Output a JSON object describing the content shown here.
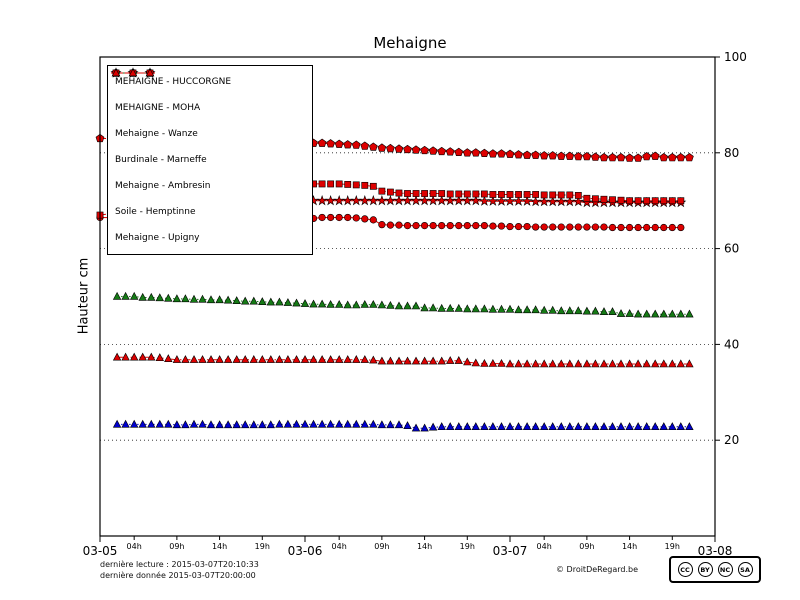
{
  "chart": {
    "title": "Mehaigne",
    "ylabel": "Hauteur cm"
  },
  "footer": {
    "last_reading": "dernière lecture : 2015-03-07T20:10:33",
    "last_data": "dernière donnée  2015-03-07T20:00:00",
    "copyright": "© DroitDeRegard.be",
    "license": {
      "label": "CC BY-NC-SA",
      "parts": [
        "cc",
        "by",
        "nc",
        "sa"
      ]
    }
  },
  "chart_data": {
    "type": "line",
    "title": "Mehaigne",
    "ylabel": "Hauteur cm",
    "ylim": [
      0,
      100
    ],
    "yticks": [
      20,
      40,
      60,
      80,
      100
    ],
    "grid": "dotted horizontal at yticks",
    "legend_position": "upper left",
    "x_unit": "hours since 2015-03-05 00:00",
    "xlim_hours": [
      0,
      72
    ],
    "x_major_ticks": [
      {
        "t": 0,
        "label": "03-05"
      },
      {
        "t": 24,
        "label": "03-06"
      },
      {
        "t": 48,
        "label": "03-07"
      },
      {
        "t": 72,
        "label": "03-08"
      }
    ],
    "x_minor_ticks": [
      {
        "t": 4,
        "label": "04h"
      },
      {
        "t": 9,
        "label": "09h"
      },
      {
        "t": 14,
        "label": "14h"
      },
      {
        "t": 19,
        "label": "19h"
      },
      {
        "t": 28,
        "label": "04h"
      },
      {
        "t": 33,
        "label": "09h"
      },
      {
        "t": 38,
        "label": "14h"
      },
      {
        "t": 43,
        "label": "19h"
      },
      {
        "t": 52,
        "label": "04h"
      },
      {
        "t": 57,
        "label": "09h"
      },
      {
        "t": 62,
        "label": "14h"
      },
      {
        "t": 67,
        "label": "19h"
      }
    ],
    "series": [
      {
        "name": "MEHAIGNE - HUCCORGNE",
        "color": "#dd0000",
        "marker": "circle",
        "linestyle": "solid",
        "pre_points": [
          [
            0,
            66.5
          ]
        ],
        "t0": 24,
        "values": [
          66,
          66.3,
          66.5,
          66.5,
          66.5,
          66.5,
          66.4,
          66.2,
          66,
          65,
          64.9,
          64.9,
          64.8,
          64.8,
          64.8,
          64.8,
          64.8,
          64.8,
          64.8,
          64.8,
          64.8,
          64.8,
          64.7,
          64.7,
          64.6,
          64.6,
          64.6,
          64.5,
          64.5,
          64.5,
          64.5,
          64.5,
          64.5,
          64.5,
          64.5,
          64.5,
          64.4,
          64.4,
          64.4,
          64.4,
          64.4,
          64.4,
          64.4,
          64.4,
          64.4
        ]
      },
      {
        "name": "MEHAIGNE - MOHA",
        "color": "#dd0000",
        "marker": "star",
        "linestyle": "solid",
        "pre_points": [],
        "t0": 24,
        "values": [
          70,
          70,
          70,
          70,
          70,
          70,
          70,
          70,
          70,
          70,
          70,
          70,
          70,
          70,
          70,
          70,
          70,
          70,
          70,
          70,
          70,
          69.9,
          69.9,
          69.9,
          69.9,
          69.9,
          69.9,
          69.8,
          69.8,
          69.8,
          69.8,
          69.8,
          69.8,
          69.6,
          69.6,
          69.6,
          69.6,
          69.6,
          69.6,
          69.6,
          69.6,
          69.6,
          69.6,
          69.6,
          69.6
        ]
      },
      {
        "name": "Mehaigne - Wanze",
        "color": "#dd0000",
        "marker": "pentagon",
        "linestyle": "dashed",
        "pre_points": [
          [
            0,
            83
          ]
        ],
        "t0": 24,
        "values": [
          82,
          82,
          82,
          81.9,
          81.8,
          81.7,
          81.6,
          81.4,
          81.2,
          81,
          80.9,
          80.8,
          80.7,
          80.6,
          80.5,
          80.4,
          80.3,
          80.2,
          80.1,
          80,
          80,
          79.9,
          79.8,
          79.8,
          79.7,
          79.6,
          79.5,
          79.5,
          79.4,
          79.4,
          79.3,
          79.3,
          79.2,
          79.2,
          79.1,
          79,
          79,
          79,
          78.9,
          78.9,
          79.2,
          79.3,
          79,
          79,
          79,
          79
        ]
      },
      {
        "name": "Burdinale - Marneffe",
        "color": "#0000cc",
        "marker": "triangle",
        "linestyle": "dotted",
        "pre_points": [],
        "t0": 2,
        "values": [
          23.3,
          23.3,
          23.3,
          23.3,
          23.3,
          23.3,
          23.3,
          23.2,
          23.2,
          23.3,
          23.3,
          23.2,
          23.2,
          23.2,
          23.2,
          23.2,
          23.2,
          23.2,
          23.2,
          23.3,
          23.3,
          23.3,
          23.3,
          23.3,
          23.3,
          23.3,
          23.3,
          23.3,
          23.3,
          23.3,
          23.3,
          23.2,
          23.2,
          23.2,
          23,
          22.5,
          22.5,
          22.7,
          22.8,
          22.8,
          22.8,
          22.8,
          22.8,
          22.8,
          22.8,
          22.8,
          22.8,
          22.8,
          22.8,
          22.8,
          22.8,
          22.8,
          22.8,
          22.8,
          22.8,
          22.8,
          22.8,
          22.8,
          22.8,
          22.8,
          22.8,
          22.8,
          22.8,
          22.8,
          22.8,
          22.8,
          22.8,
          22.8
        ]
      },
      {
        "name": "Mehaigne - Ambresin",
        "color": "#dd0000",
        "marker": "square",
        "linestyle": "dashdot",
        "pre_points": [
          [
            0,
            67
          ]
        ],
        "t0": 24,
        "values": [
          73.5,
          73.5,
          73.5,
          73.5,
          73.5,
          73.4,
          73.3,
          73.2,
          73,
          72,
          71.8,
          71.6,
          71.5,
          71.5,
          71.5,
          71.5,
          71.5,
          71.4,
          71.4,
          71.4,
          71.4,
          71.4,
          71.3,
          71.3,
          71.3,
          71.3,
          71.3,
          71.3,
          71.2,
          71.2,
          71.2,
          71.2,
          71.1,
          70.5,
          70.4,
          70.3,
          70.2,
          70.1,
          70,
          70,
          70,
          70,
          70,
          70,
          70
        ]
      },
      {
        "name": "Soile - Hemptinne",
        "color": "#157a15",
        "marker": "triangle",
        "linestyle": "dotted",
        "pre_points": [],
        "t0": 2,
        "values": [
          50,
          50,
          50,
          49.8,
          49.8,
          49.7,
          49.6,
          49.5,
          49.5,
          49.4,
          49.4,
          49.3,
          49.3,
          49.2,
          49.1,
          49,
          49,
          48.9,
          48.8,
          48.8,
          48.7,
          48.6,
          48.5,
          48.4,
          48.4,
          48.3,
          48.3,
          48.2,
          48.2,
          48.3,
          48.3,
          48.2,
          48.1,
          48,
          48,
          48,
          47.6,
          47.6,
          47.5,
          47.5,
          47.5,
          47.4,
          47.4,
          47.4,
          47.3,
          47.3,
          47.3,
          47.2,
          47.2,
          47.2,
          47.1,
          47.1,
          47,
          47,
          47,
          46.9,
          46.9,
          46.8,
          46.8,
          46.4,
          46.4,
          46.3,
          46.3,
          46.3,
          46.3,
          46.3,
          46.3,
          46.3
        ]
      },
      {
        "name": "Mehaigne - Upigny",
        "color": "#dd0000",
        "marker": "triangle",
        "linestyle": "dashdot",
        "pre_points": [],
        "t0": 2,
        "values": [
          37.3,
          37.3,
          37.3,
          37.3,
          37.3,
          37.2,
          37,
          36.8,
          36.8,
          36.8,
          36.8,
          36.8,
          36.8,
          36.8,
          36.8,
          36.8,
          36.8,
          36.8,
          36.8,
          36.8,
          36.8,
          36.8,
          36.8,
          36.8,
          36.8,
          36.8,
          36.8,
          36.8,
          36.8,
          36.8,
          36.7,
          36.5,
          36.5,
          36.5,
          36.5,
          36.5,
          36.5,
          36.5,
          36.5,
          36.6,
          36.6,
          36.3,
          36.1,
          36,
          36,
          36,
          35.9,
          35.9,
          35.9,
          35.9,
          35.9,
          35.9,
          35.9,
          35.9,
          35.9,
          35.9,
          35.9,
          35.9,
          35.9,
          35.9,
          35.9,
          35.9,
          35.9,
          35.9,
          35.9,
          35.9,
          35.9,
          35.9
        ]
      }
    ]
  }
}
